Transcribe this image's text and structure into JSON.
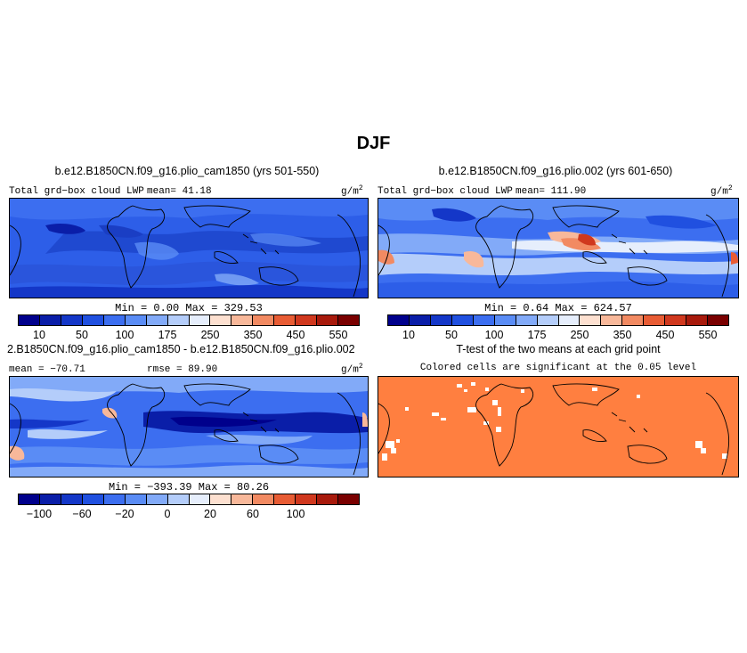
{
  "figure": {
    "title": "DJF",
    "unit_main": "g/m",
    "unit_sup": "2"
  },
  "panels": {
    "control": {
      "title": "b.e12.B1850CN.f09_g16.plio_cam1850 (yrs 501-550)",
      "variable": "Total grd−box cloud LWP",
      "mean": "mean=  41.18",
      "minmax": "Min =    0.00  Max =  329.53"
    },
    "experiment": {
      "title": "b.e12.B1850CN.f09_g16.plio.002 (yrs 601-650)",
      "variable": "Total grd−box cloud LWP",
      "mean": "mean=  111.90",
      "minmax": "Min =    0.64  Max =  624.57"
    },
    "difference": {
      "title": "2.B1850CN.f09_g16.plio_cam1850 - b.e12.B1850CN.f09_g16.plio.002",
      "mean": "mean = −70.71",
      "rmse": "rmse =   89.90",
      "minmax": "Min = −393.39  Max =   80.26"
    },
    "ttest": {
      "title": "T-test of the two means at each grid point",
      "subtitle": "Colored cells are significant at the 0.05 level",
      "fill_color": "#ff7f40"
    }
  },
  "colorbars": {
    "absolute": {
      "colors": [
        "#00008c",
        "#0a1ea8",
        "#1437c8",
        "#2050e0",
        "#3c6ef0",
        "#5a8cf5",
        "#82aaf8",
        "#b4cdfa",
        "#e6eefc",
        "#fde0d0",
        "#f8b89a",
        "#f28a62",
        "#e85c34",
        "#d0381e",
        "#a81a0c",
        "#7a0000"
      ],
      "labels": [
        "10",
        "50",
        "100",
        "175",
        "250",
        "350",
        "450",
        "550"
      ]
    },
    "difference": {
      "colors": [
        "#00008c",
        "#0a1ea8",
        "#1437c8",
        "#2050e0",
        "#3c6ef0",
        "#5a8cf5",
        "#82aaf8",
        "#b4cdfa",
        "#e6eefc",
        "#fde0d0",
        "#f8b89a",
        "#f28a62",
        "#e85c34",
        "#d0381e",
        "#a81a0c",
        "#7a0000"
      ],
      "labels": [
        "−100",
        "−60",
        "−20",
        "0",
        "20",
        "60",
        "100"
      ]
    }
  }
}
